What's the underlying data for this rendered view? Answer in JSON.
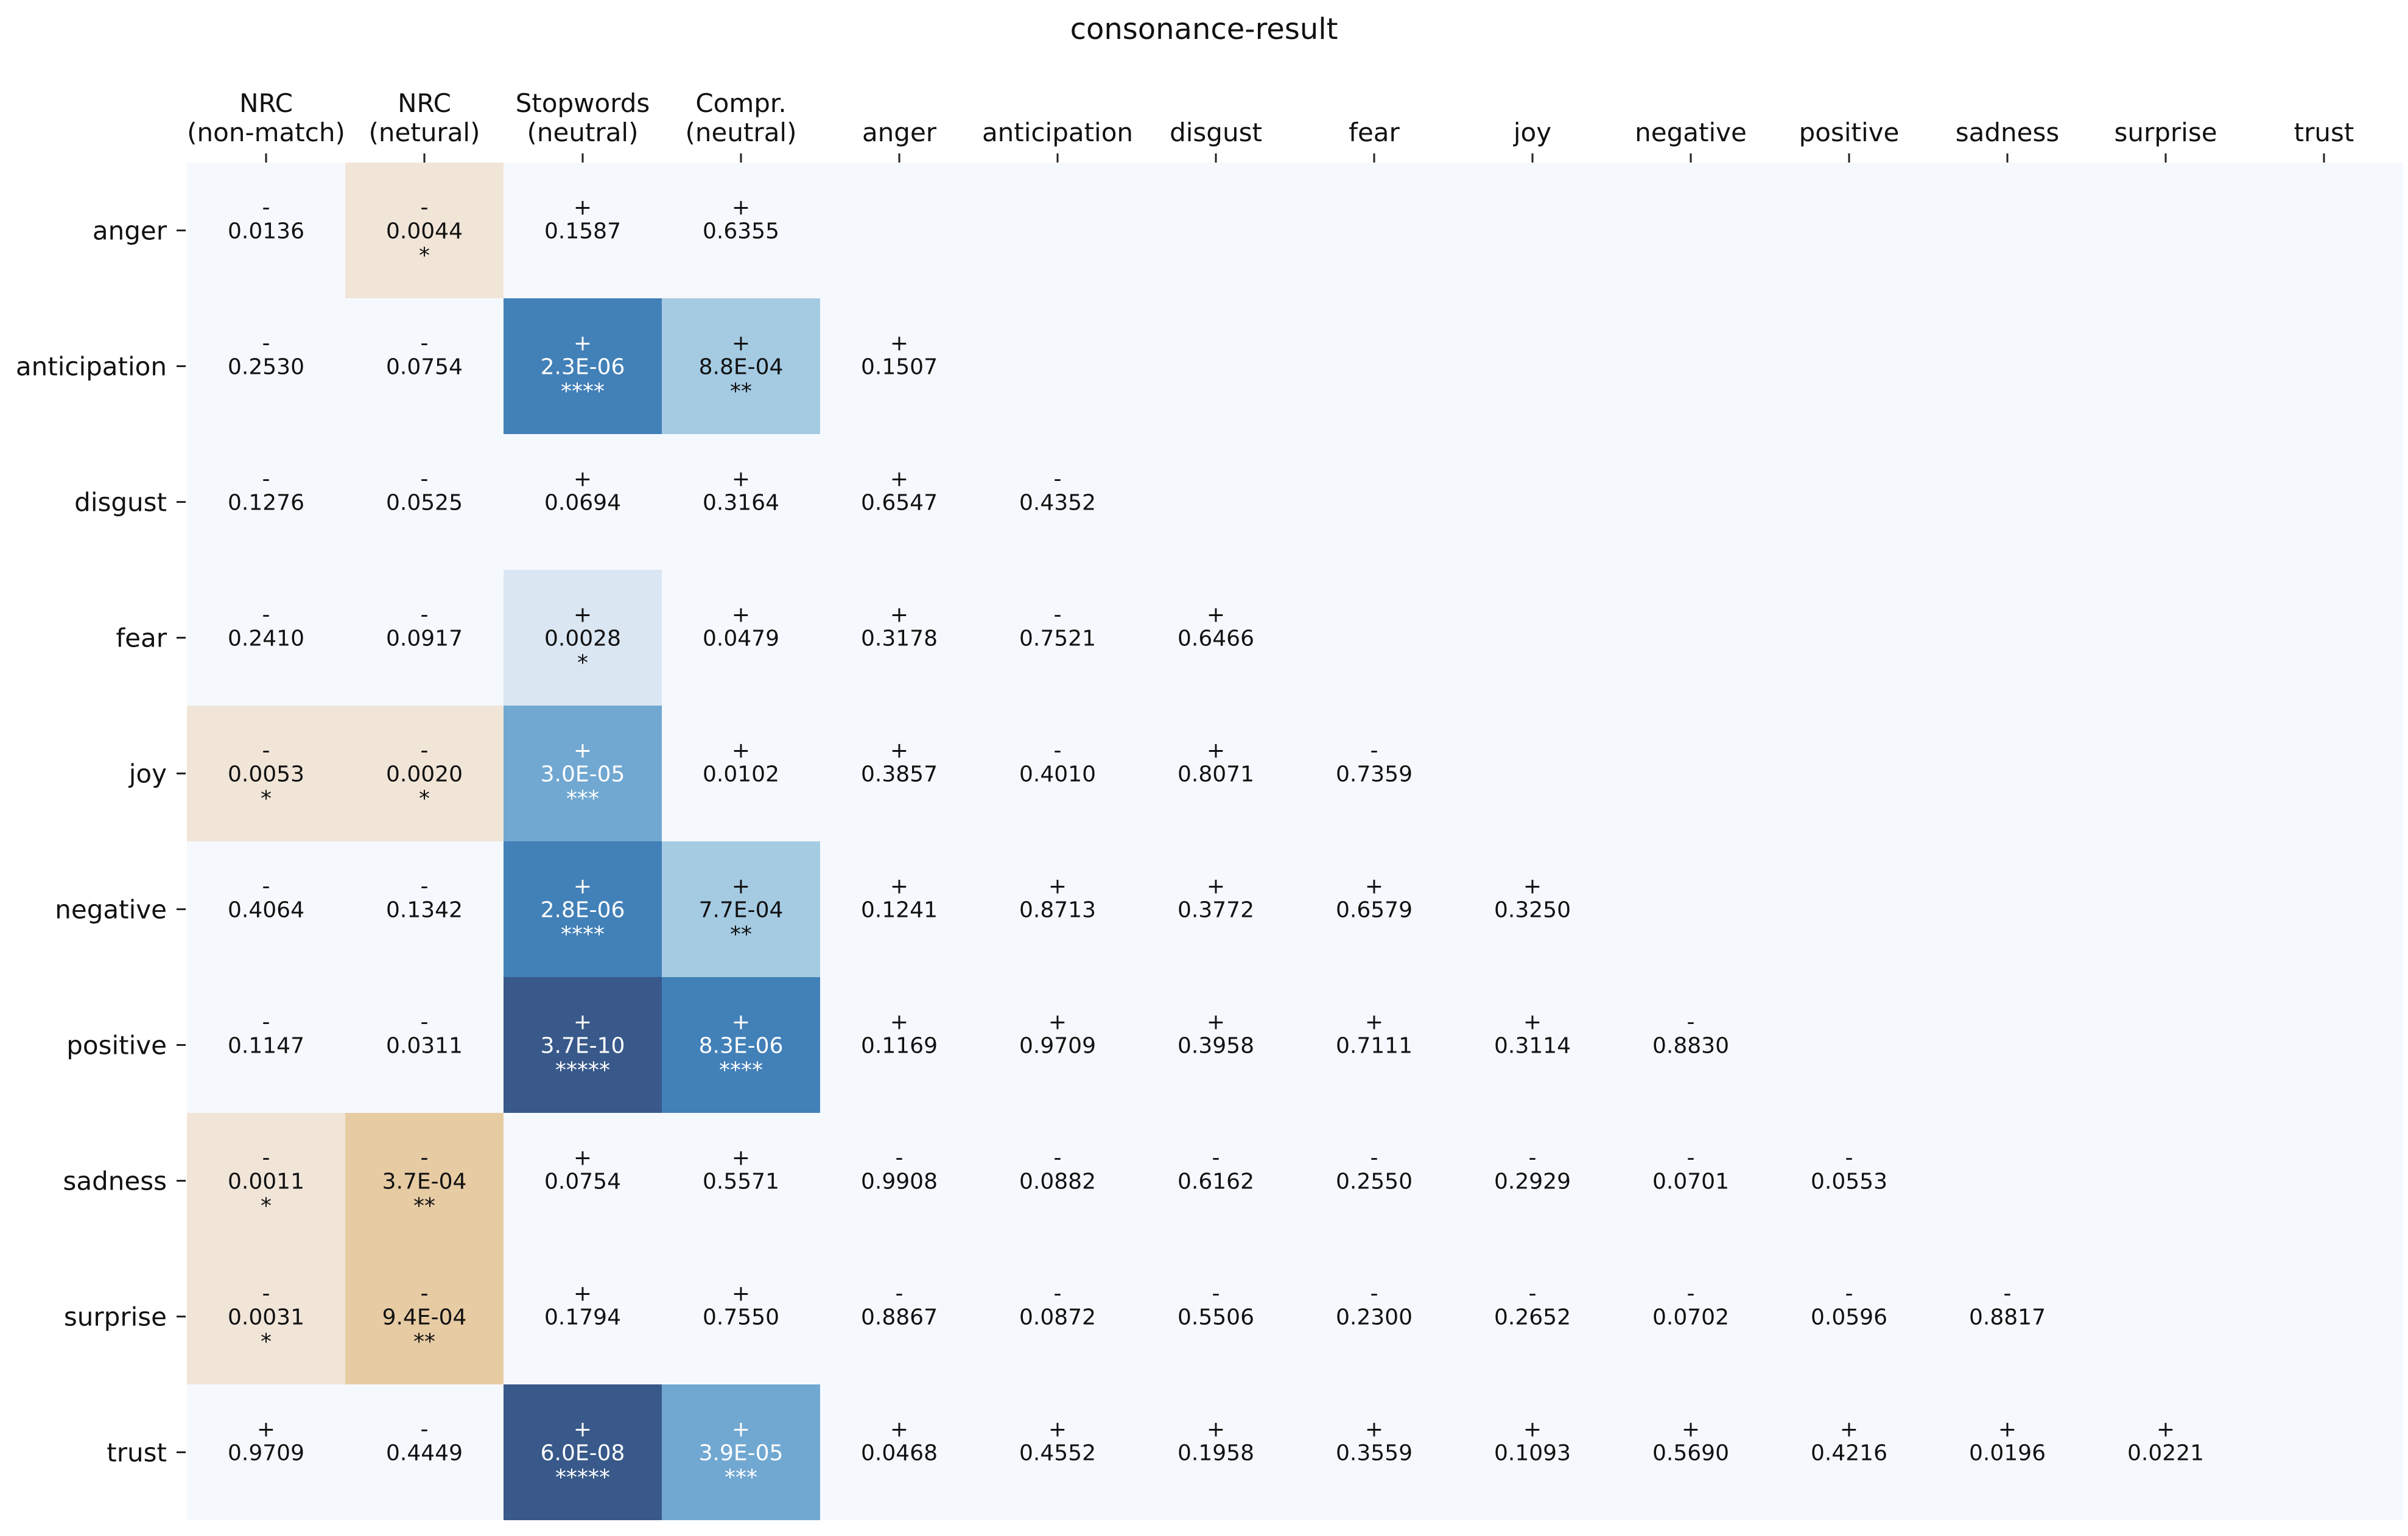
{
  "chart_data": {
    "type": "heatmap",
    "title": "consonance-result",
    "columns": [
      [
        "NRC",
        "(non-match)"
      ],
      [
        "NRC",
        "(netural)"
      ],
      [
        "Stopwords",
        "(neutral)"
      ],
      [
        "Compr.",
        "(neutral)"
      ],
      [
        "anger"
      ],
      [
        "anticipation"
      ],
      [
        "disgust"
      ],
      [
        "fear"
      ],
      [
        "joy"
      ],
      [
        "negative"
      ],
      [
        "positive"
      ],
      [
        "sadness"
      ],
      [
        "surprise"
      ],
      [
        "trust"
      ]
    ],
    "rows": [
      "anger",
      "anticipation",
      "disgust",
      "fear",
      "joy",
      "negative",
      "positive",
      "sadness",
      "surprise",
      "trust"
    ],
    "colors": {
      "background": "#f5f9fe",
      "tan_light": "#f1e5d8",
      "tan_medium": "#e6cba3",
      "blue_light": "#dae6f2",
      "blue_medium_light": "#a5cbe3",
      "blue_medium": "#71a8d2",
      "blue_dark": "#4280b8",
      "blue_darkest": "#38598a"
    },
    "cells": [
      [
        {
          "sign": "-",
          "p": "0.0136",
          "sig": ""
        },
        {
          "sign": "-",
          "p": "0.0044",
          "sig": "*",
          "shade": "tan_light"
        },
        {
          "sign": "+",
          "p": "0.1587",
          "sig": ""
        },
        {
          "sign": "+",
          "p": "0.6355",
          "sig": ""
        }
      ],
      [
        {
          "sign": "-",
          "p": "0.2530",
          "sig": ""
        },
        {
          "sign": "-",
          "p": "0.0754",
          "sig": ""
        },
        {
          "sign": "+",
          "p": "2.3E-06",
          "sig": "****",
          "shade": "blue_dark"
        },
        {
          "sign": "+",
          "p": "8.8E-04",
          "sig": "**",
          "shade": "blue_medium_light"
        },
        {
          "sign": "+",
          "p": "0.1507",
          "sig": ""
        }
      ],
      [
        {
          "sign": "-",
          "p": "0.1276",
          "sig": ""
        },
        {
          "sign": "-",
          "p": "0.0525",
          "sig": ""
        },
        {
          "sign": "+",
          "p": "0.0694",
          "sig": ""
        },
        {
          "sign": "+",
          "p": "0.3164",
          "sig": ""
        },
        {
          "sign": "+",
          "p": "0.6547",
          "sig": ""
        },
        {
          "sign": "-",
          "p": "0.4352",
          "sig": ""
        }
      ],
      [
        {
          "sign": "-",
          "p": "0.2410",
          "sig": ""
        },
        {
          "sign": "-",
          "p": "0.0917",
          "sig": ""
        },
        {
          "sign": "+",
          "p": "0.0028",
          "sig": "*",
          "shade": "blue_light"
        },
        {
          "sign": "+",
          "p": "0.0479",
          "sig": ""
        },
        {
          "sign": "+",
          "p": "0.3178",
          "sig": ""
        },
        {
          "sign": "-",
          "p": "0.7521",
          "sig": ""
        },
        {
          "sign": "+",
          "p": "0.6466",
          "sig": ""
        }
      ],
      [
        {
          "sign": "-",
          "p": "0.0053",
          "sig": "*",
          "shade": "tan_light"
        },
        {
          "sign": "-",
          "p": "0.0020",
          "sig": "*",
          "shade": "tan_light"
        },
        {
          "sign": "+",
          "p": "3.0E-05",
          "sig": "***",
          "shade": "blue_medium"
        },
        {
          "sign": "+",
          "p": "0.0102",
          "sig": ""
        },
        {
          "sign": "+",
          "p": "0.3857",
          "sig": ""
        },
        {
          "sign": "-",
          "p": "0.4010",
          "sig": ""
        },
        {
          "sign": "+",
          "p": "0.8071",
          "sig": ""
        },
        {
          "sign": "-",
          "p": "0.7359",
          "sig": ""
        }
      ],
      [
        {
          "sign": "-",
          "p": "0.4064",
          "sig": ""
        },
        {
          "sign": "-",
          "p": "0.1342",
          "sig": ""
        },
        {
          "sign": "+",
          "p": "2.8E-06",
          "sig": "****",
          "shade": "blue_dark"
        },
        {
          "sign": "+",
          "p": "7.7E-04",
          "sig": "**",
          "shade": "blue_medium_light"
        },
        {
          "sign": "+",
          "p": "0.1241",
          "sig": ""
        },
        {
          "sign": "+",
          "p": "0.8713",
          "sig": ""
        },
        {
          "sign": "+",
          "p": "0.3772",
          "sig": ""
        },
        {
          "sign": "+",
          "p": "0.6579",
          "sig": ""
        },
        {
          "sign": "+",
          "p": "0.3250",
          "sig": ""
        }
      ],
      [
        {
          "sign": "-",
          "p": "0.1147",
          "sig": ""
        },
        {
          "sign": "-",
          "p": "0.0311",
          "sig": ""
        },
        {
          "sign": "+",
          "p": "3.7E-10",
          "sig": "*****",
          "shade": "blue_darkest"
        },
        {
          "sign": "+",
          "p": "8.3E-06",
          "sig": "****",
          "shade": "blue_dark"
        },
        {
          "sign": "+",
          "p": "0.1169",
          "sig": ""
        },
        {
          "sign": "+",
          "p": "0.9709",
          "sig": ""
        },
        {
          "sign": "+",
          "p": "0.3958",
          "sig": ""
        },
        {
          "sign": "+",
          "p": "0.7111",
          "sig": ""
        },
        {
          "sign": "+",
          "p": "0.3114",
          "sig": ""
        },
        {
          "sign": "-",
          "p": "0.8830",
          "sig": ""
        }
      ],
      [
        {
          "sign": "-",
          "p": "0.0011",
          "sig": "*",
          "shade": "tan_light"
        },
        {
          "sign": "-",
          "p": "3.7E-04",
          "sig": "**",
          "shade": "tan_medium"
        },
        {
          "sign": "+",
          "p": "0.0754",
          "sig": ""
        },
        {
          "sign": "+",
          "p": "0.5571",
          "sig": ""
        },
        {
          "sign": "-",
          "p": "0.9908",
          "sig": ""
        },
        {
          "sign": "-",
          "p": "0.0882",
          "sig": ""
        },
        {
          "sign": "-",
          "p": "0.6162",
          "sig": ""
        },
        {
          "sign": "-",
          "p": "0.2550",
          "sig": ""
        },
        {
          "sign": "-",
          "p": "0.2929",
          "sig": ""
        },
        {
          "sign": "-",
          "p": "0.0701",
          "sig": ""
        },
        {
          "sign": "-",
          "p": "0.0553",
          "sig": ""
        }
      ],
      [
        {
          "sign": "-",
          "p": "0.0031",
          "sig": "*",
          "shade": "tan_light"
        },
        {
          "sign": "-",
          "p": "9.4E-04",
          "sig": "**",
          "shade": "tan_medium"
        },
        {
          "sign": "+",
          "p": "0.1794",
          "sig": ""
        },
        {
          "sign": "+",
          "p": "0.7550",
          "sig": ""
        },
        {
          "sign": "-",
          "p": "0.8867",
          "sig": ""
        },
        {
          "sign": "-",
          "p": "0.0872",
          "sig": ""
        },
        {
          "sign": "-",
          "p": "0.5506",
          "sig": ""
        },
        {
          "sign": "-",
          "p": "0.2300",
          "sig": ""
        },
        {
          "sign": "-",
          "p": "0.2652",
          "sig": ""
        },
        {
          "sign": "-",
          "p": "0.0702",
          "sig": ""
        },
        {
          "sign": "-",
          "p": "0.0596",
          "sig": ""
        },
        {
          "sign": "-",
          "p": "0.8817",
          "sig": ""
        }
      ],
      [
        {
          "sign": "+",
          "p": "0.9709",
          "sig": ""
        },
        {
          "sign": "-",
          "p": "0.4449",
          "sig": ""
        },
        {
          "sign": "+",
          "p": "6.0E-08",
          "sig": "*****",
          "shade": "blue_darkest"
        },
        {
          "sign": "+",
          "p": "3.9E-05",
          "sig": "***",
          "shade": "blue_medium"
        },
        {
          "sign": "+",
          "p": "0.0468",
          "sig": ""
        },
        {
          "sign": "+",
          "p": "0.4552",
          "sig": ""
        },
        {
          "sign": "+",
          "p": "0.1958",
          "sig": ""
        },
        {
          "sign": "+",
          "p": "0.3559",
          "sig": ""
        },
        {
          "sign": "+",
          "p": "0.1093",
          "sig": ""
        },
        {
          "sign": "+",
          "p": "0.5690",
          "sig": ""
        },
        {
          "sign": "+",
          "p": "0.4216",
          "sig": ""
        },
        {
          "sign": "+",
          "p": "0.0196",
          "sig": ""
        },
        {
          "sign": "+",
          "p": "0.0221",
          "sig": ""
        }
      ]
    ]
  }
}
